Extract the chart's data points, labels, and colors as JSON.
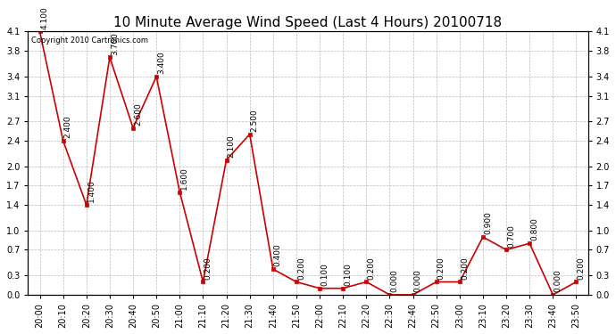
{
  "title": "10 Minute Average Wind Speed (Last 4 Hours) 20100718",
  "copyright": "Copyright 2010 Cartronics.com",
  "times": [
    "20:00",
    "20:10",
    "20:20",
    "20:30",
    "20:40",
    "20:50",
    "21:00",
    "21:10",
    "21:20",
    "21:30",
    "21:40",
    "21:50",
    "22:00",
    "22:10",
    "22:20",
    "22:30",
    "22:40",
    "22:50",
    "23:00",
    "23:10",
    "23:20",
    "23:30",
    "23:40",
    "23:50"
  ],
  "values": [
    4.1,
    2.4,
    1.4,
    3.7,
    2.6,
    3.4,
    1.6,
    0.2,
    2.1,
    2.5,
    0.4,
    0.2,
    0.1,
    0.1,
    0.2,
    0.0,
    0.0,
    0.2,
    0.2,
    0.9,
    0.7,
    0.8,
    0.0,
    0.2
  ],
  "line_color": "#cc0000",
  "marker_color": "#cc0000",
  "background_color": "#ffffff",
  "grid_color": "#bbbbbb",
  "title_fontsize": 11,
  "label_fontsize": 7,
  "annotation_fontsize": 6.5,
  "copyright_fontsize": 6,
  "ylim": [
    0.0,
    4.1
  ],
  "yticks": [
    0.0,
    0.3,
    0.7,
    1.0,
    1.4,
    1.7,
    2.0,
    2.4,
    2.7,
    3.1,
    3.4,
    3.8,
    4.1
  ]
}
